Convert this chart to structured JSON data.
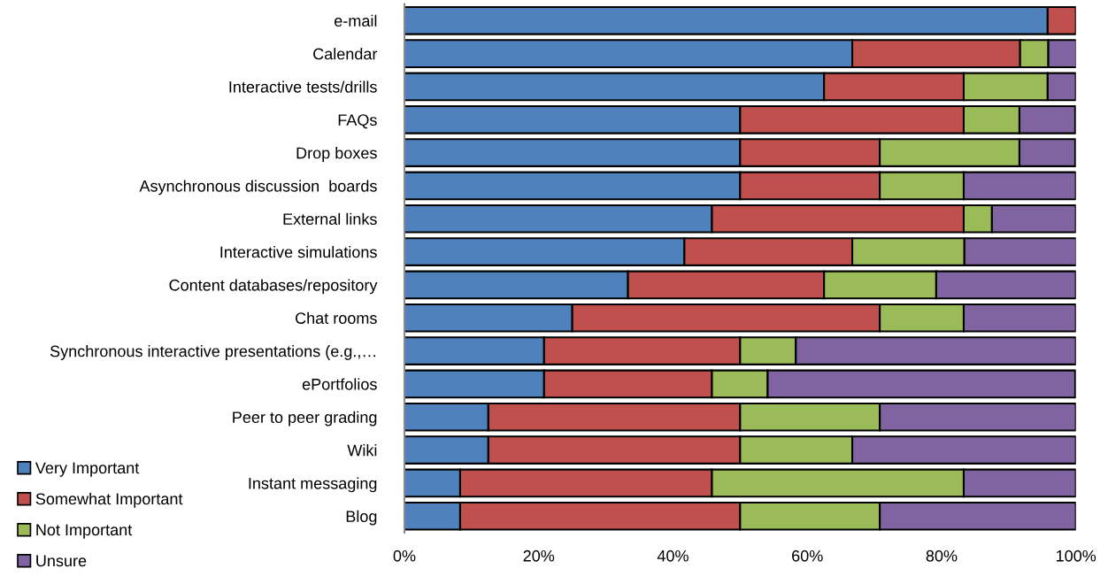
{
  "chart_data": {
    "type": "bar",
    "orientation": "horizontal",
    "stacked": true,
    "categories": [
      "e-mail",
      "Calendar",
      "Interactive tests/drills",
      "FAQs",
      "Drop boxes",
      "Asynchronous discussion  boards",
      "External links",
      "Interactive simulations",
      "Content databases/repository",
      "Chat rooms",
      "Synchronous interactive presentations (e.g.,…",
      "ePortfolios",
      "Peer to peer grading",
      "Wiki",
      "Instant messaging",
      "Blog"
    ],
    "series": [
      {
        "name": "Very Important",
        "color": "#4f81bd",
        "values": [
          95.8,
          66.7,
          62.5,
          50,
          50,
          50,
          45.8,
          41.7,
          33.3,
          25,
          20.8,
          20.8,
          12.5,
          12.5,
          8.3,
          8.3
        ]
      },
      {
        "name": "Somewhat Important",
        "color": "#c0504d",
        "values": [
          4.2,
          25,
          20.8,
          33.3,
          20.8,
          20.8,
          37.5,
          25,
          29.2,
          45.8,
          29.2,
          25,
          37.5,
          37.5,
          37.5,
          41.7
        ]
      },
      {
        "name": "Not Important",
        "color": "#9bbb59",
        "values": [
          0,
          4.2,
          12.5,
          8.3,
          20.8,
          12.5,
          4.2,
          16.7,
          16.7,
          12.5,
          8.3,
          8.3,
          20.8,
          16.7,
          37.5,
          20.8
        ]
      },
      {
        "name": "Unsure",
        "color": "#8064a2",
        "values": [
          0,
          4.2,
          4.2,
          8.3,
          8.3,
          16.7,
          12.5,
          16.7,
          20.8,
          16.7,
          41.7,
          45.8,
          29.2,
          33.3,
          16.7,
          29.2
        ]
      }
    ],
    "xlim": [
      0,
      100
    ],
    "xticks": [
      {
        "value": 0,
        "label": "0%"
      },
      {
        "value": 20,
        "label": "20%"
      },
      {
        "value": 40,
        "label": "40%"
      },
      {
        "value": 60,
        "label": "60%"
      },
      {
        "value": 80,
        "label": "80%"
      },
      {
        "value": 100,
        "label": "100%"
      }
    ],
    "grid": false,
    "legend": "bottom left"
  }
}
